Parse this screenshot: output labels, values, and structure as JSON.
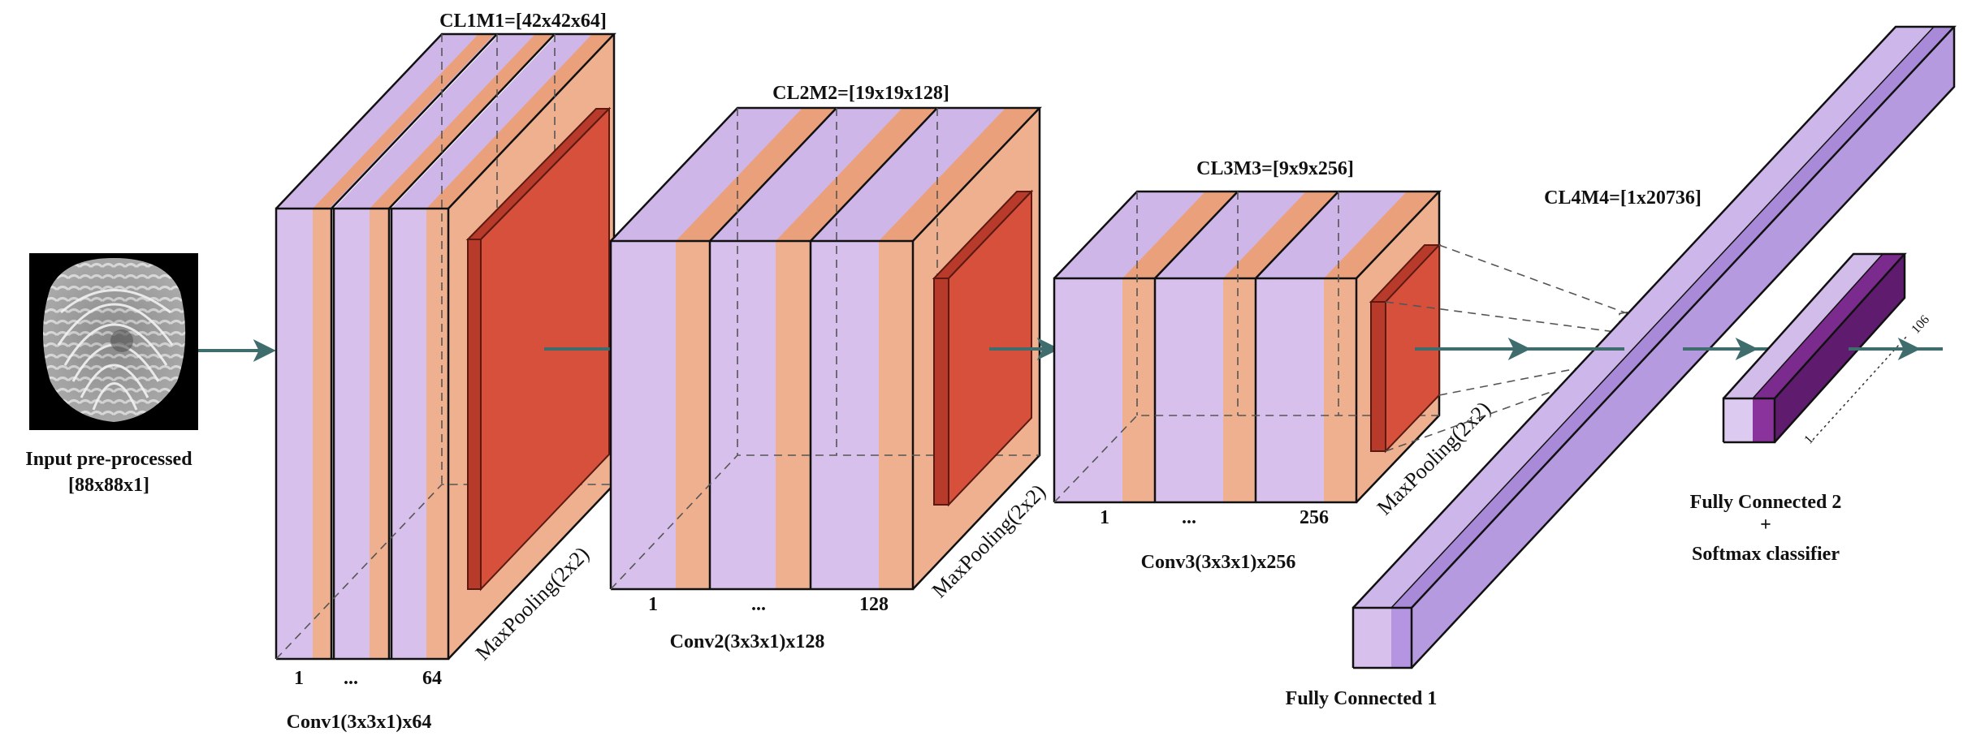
{
  "input": {
    "label_line1": "Input pre-processed",
    "label_line2": "[88x88x1]"
  },
  "block1": {
    "output_label": "CL1M1=[42x42x64]",
    "conv_label": "Conv1(3x3x1)x64",
    "index_first": "1",
    "index_dots": "...",
    "index_last": "64",
    "pool_label": "MaxPooling(2x2)"
  },
  "block2": {
    "output_label": "CL2M2=[19x19x128]",
    "conv_label": "Conv2(3x3x1)x128",
    "index_first": "1",
    "index_dots": "...",
    "index_last": "128",
    "pool_label": "MaxPooling(2x2)"
  },
  "block3": {
    "output_label": "CL3M3=[9x9x256]",
    "conv_label": "Conv3(3x3x1)x256",
    "index_first": "1",
    "index_dots": "...",
    "index_last": "256",
    "pool_label": "MaxPooling(2x2)"
  },
  "fc1": {
    "output_label": "CL4M4=[1x20736]",
    "label": "Fully Connected 1"
  },
  "fc2": {
    "label_line1": "Fully Connected 2",
    "label_plus": "+",
    "label_line2": "Softmax classifier",
    "index_first": "1",
    "index_last": "106"
  },
  "colors": {
    "lavender": "#d7c1ec",
    "peach": "#efb08f",
    "pool_red": "#d6503c",
    "fc_purple": "#a98ad9",
    "fc2_dark": "#7b2a8e",
    "arrow": "#3f6d6d"
  },
  "icons": {
    "input_image": "fingerprint-image",
    "flow_arrow": "arrow-right-icon"
  }
}
